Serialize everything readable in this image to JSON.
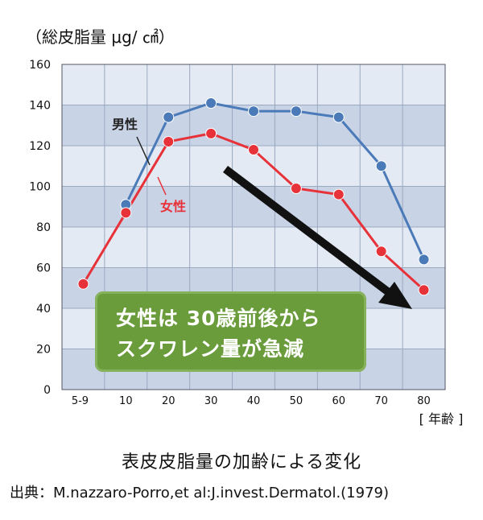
{
  "unit_label": "（総皮脂量 μg/ ㎠）",
  "caption": "表皮皮脂量の加齢による変化",
  "source": "出典：M.nazzaro-Porro,et al:J.invest.Dermatol.(1979)",
  "callout": {
    "line1": "女性は 30歳前後から",
    "line2": "スクワレン量が急減",
    "color": "#6a9c3c"
  },
  "chart_data": {
    "type": "line",
    "categories": [
      "5-9",
      "10",
      "20",
      "30",
      "40",
      "50",
      "60",
      "70",
      "80"
    ],
    "xlabel": "[ 年齢 ]",
    "ylabel": "（総皮脂量 μg/ ㎠）",
    "ylim": [
      0,
      160
    ],
    "yticks": [
      0,
      20,
      40,
      60,
      80,
      100,
      120,
      140,
      160
    ],
    "grid": true,
    "series": [
      {
        "name": "男性",
        "color": "#4a7ab8",
        "points": [
          [
            1,
            91
          ],
          [
            2,
            134
          ],
          [
            3,
            141
          ],
          [
            4,
            137
          ],
          [
            5,
            137
          ],
          [
            6,
            134
          ],
          [
            7,
            110
          ],
          [
            8,
            64
          ]
        ]
      },
      {
        "name": "女性",
        "color": "#e8323a",
        "points": [
          [
            0,
            52
          ],
          [
            1,
            87
          ],
          [
            2,
            122
          ],
          [
            3,
            126
          ],
          [
            4,
            118
          ],
          [
            5,
            99
          ],
          [
            6,
            96
          ],
          [
            7,
            68
          ],
          [
            8,
            49
          ]
        ]
      }
    ]
  }
}
